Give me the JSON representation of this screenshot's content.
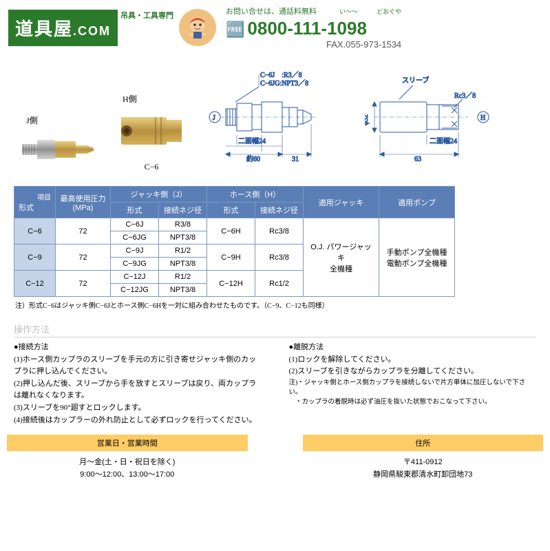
{
  "header": {
    "logo_main": "道具屋",
    "logo_com": ".COM",
    "logo_sub": "吊具・工具専門",
    "contact_label": "お問い合せは、通話料無料",
    "phone_ruby_i": "い〜〜",
    "phone_ruby_d": "どおぐや",
    "phone": "0800-111-1098",
    "fax": "FAX.055-973-1534"
  },
  "parts": {
    "j_label": "J側",
    "h_label": "H側",
    "model_label": "C−6",
    "sleeve_label": "スリーブ"
  },
  "dimensions": {
    "c6j_thread": "C−6J　:R3／8",
    "c6jg_thread": "C−6JG:NPT3／8",
    "width_j": "二面幅24",
    "len_80": "約80",
    "len_31": "31",
    "dia_32": "φ32",
    "rc38": "Rc3／8",
    "width_h": "二面幅24",
    "len_63": "63",
    "j_mark": "J",
    "h_mark": "H"
  },
  "table": {
    "headers": {
      "item": "項目",
      "model": "形式",
      "pressure": "最高使用圧力\n(MPa)",
      "j_side": "ジャッキ側（J）",
      "h_side": "ホース側（H）",
      "j_model": "形式",
      "j_thread": "接続ネジ径",
      "h_model": "形式",
      "h_thread": "接続ネジ径",
      "jack": "適用ジャッキ",
      "pump": "適用ポンプ"
    },
    "rows": [
      {
        "model": "C−6",
        "pressure": "72",
        "j1": "C−6J",
        "jt1": "R3/8",
        "j2": "C−6JG",
        "jt2": "NPT3/8",
        "h": "C−6H",
        "ht": "Rc3/8"
      },
      {
        "model": "C−9",
        "pressure": "72",
        "j1": "C−9J",
        "jt1": "R1/2",
        "j2": "C−9JG",
        "jt2": "NPT3/8",
        "h": "C−9H",
        "ht": "Rc3/8"
      },
      {
        "model": "C−12",
        "pressure": "72",
        "j1": "C−12J",
        "jt1": "R1/2",
        "j2": "C−12JG",
        "jt2": "NPT3/8",
        "h": "C−12H",
        "ht": "Rc1/2"
      }
    ],
    "jack_text": "O.J. パワージャッキ\n全機種",
    "pump_text": "手動ポンプ全機種\n電動ポンプ全機種",
    "note": "注）形式C−6はジャッキ側C−6Jとホース側C−6Hを一対に組み合わせたものです。（C−9、C−12も同様）"
  },
  "ops": {
    "title": "操作方法",
    "connect_head": "●接続方法",
    "connect": [
      "(1)ホース側カップラのスリーブを手元の方に引き寄せジャッキ側のカップラに押し込んでください。",
      "(2)押し込んだ後、スリーブから手を放すとスリーブは戻り、両カップラは離れなくなります。",
      "(3)スリーブを90°廻すとロックします。",
      "(4)接続後はカップラーの外れ防止として必ずロックを行ってください。"
    ],
    "disconnect_head": "●離脱方法",
    "disconnect": [
      "(1)ロックを解除してください。",
      "(2)スリーブを引きながらカップラを分離してください。"
    ],
    "notes": [
      "注)・ジャッキ側とホース側カップラを接続しないで片方単体に加圧しないで下さい。",
      "　・カップラの着脱時は必ず油圧を抜いた状態でおこなって下さい。"
    ]
  },
  "footer": {
    "hours_hdr": "営業日・営業時間",
    "hours_l1": "月〜金(土・日・祝日を除く)",
    "hours_l2": "9:00〜12:00、13:00〜17:00",
    "addr_hdr": "住所",
    "addr_l1": "〒411-0912",
    "addr_l2": "静岡県駿東郡清水町卸団地73"
  },
  "colors": {
    "green": "#2b7a2b",
    "table_hdr": "#5a7eb5",
    "table_model": "#c5d4e8",
    "table_border": "#7a99c2",
    "footer_hdr": "#ffcc66",
    "draw_blue": "#2b5aa0",
    "brass1": "#d4b05a",
    "brass2": "#b89040",
    "steel1": "#c5c5c5",
    "steel2": "#909090"
  }
}
